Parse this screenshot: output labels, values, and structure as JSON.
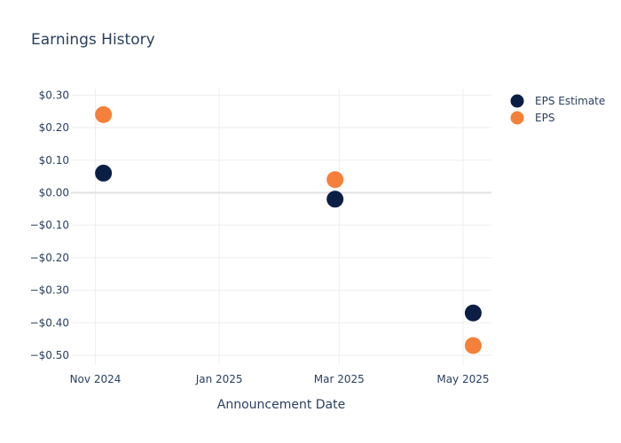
{
  "chart_data": {
    "type": "scatter",
    "title": "Earnings History",
    "xlabel": "Announcement Date",
    "ylabel": "",
    "x_ticks": [
      {
        "date": "2024-11-01",
        "label": "Nov 2024"
      },
      {
        "date": "2025-01-01",
        "label": "Jan 2025"
      },
      {
        "date": "2025-03-01",
        "label": "Mar 2025"
      },
      {
        "date": "2025-05-01",
        "label": "May 2025"
      }
    ],
    "y_ticks": [
      0.3,
      0.2,
      0.1,
      0.0,
      -0.1,
      -0.2,
      -0.3,
      -0.4,
      -0.5
    ],
    "y_tick_labels": [
      "$0.30",
      "$0.20",
      "$0.10",
      "$0.00",
      "−$0.10",
      "−$0.20",
      "−$0.30",
      "−$0.40",
      "−$0.50"
    ],
    "xlim": [
      "2024-10-20",
      "2025-05-15"
    ],
    "ylim": [
      -0.53,
      0.32
    ],
    "grid": true,
    "legend_position": "top-right",
    "series": [
      {
        "name": "EPS Estimate",
        "color": "#0b1f45",
        "points": [
          {
            "x": "2024-11-05",
            "y": 0.06
          },
          {
            "x": "2025-02-27",
            "y": -0.02
          },
          {
            "x": "2025-05-06",
            "y": -0.37
          }
        ]
      },
      {
        "name": "EPS",
        "color": "#f5803a",
        "points": [
          {
            "x": "2024-11-05",
            "y": 0.24
          },
          {
            "x": "2025-02-27",
            "y": 0.04
          },
          {
            "x": "2025-05-06",
            "y": -0.47
          }
        ]
      }
    ]
  }
}
